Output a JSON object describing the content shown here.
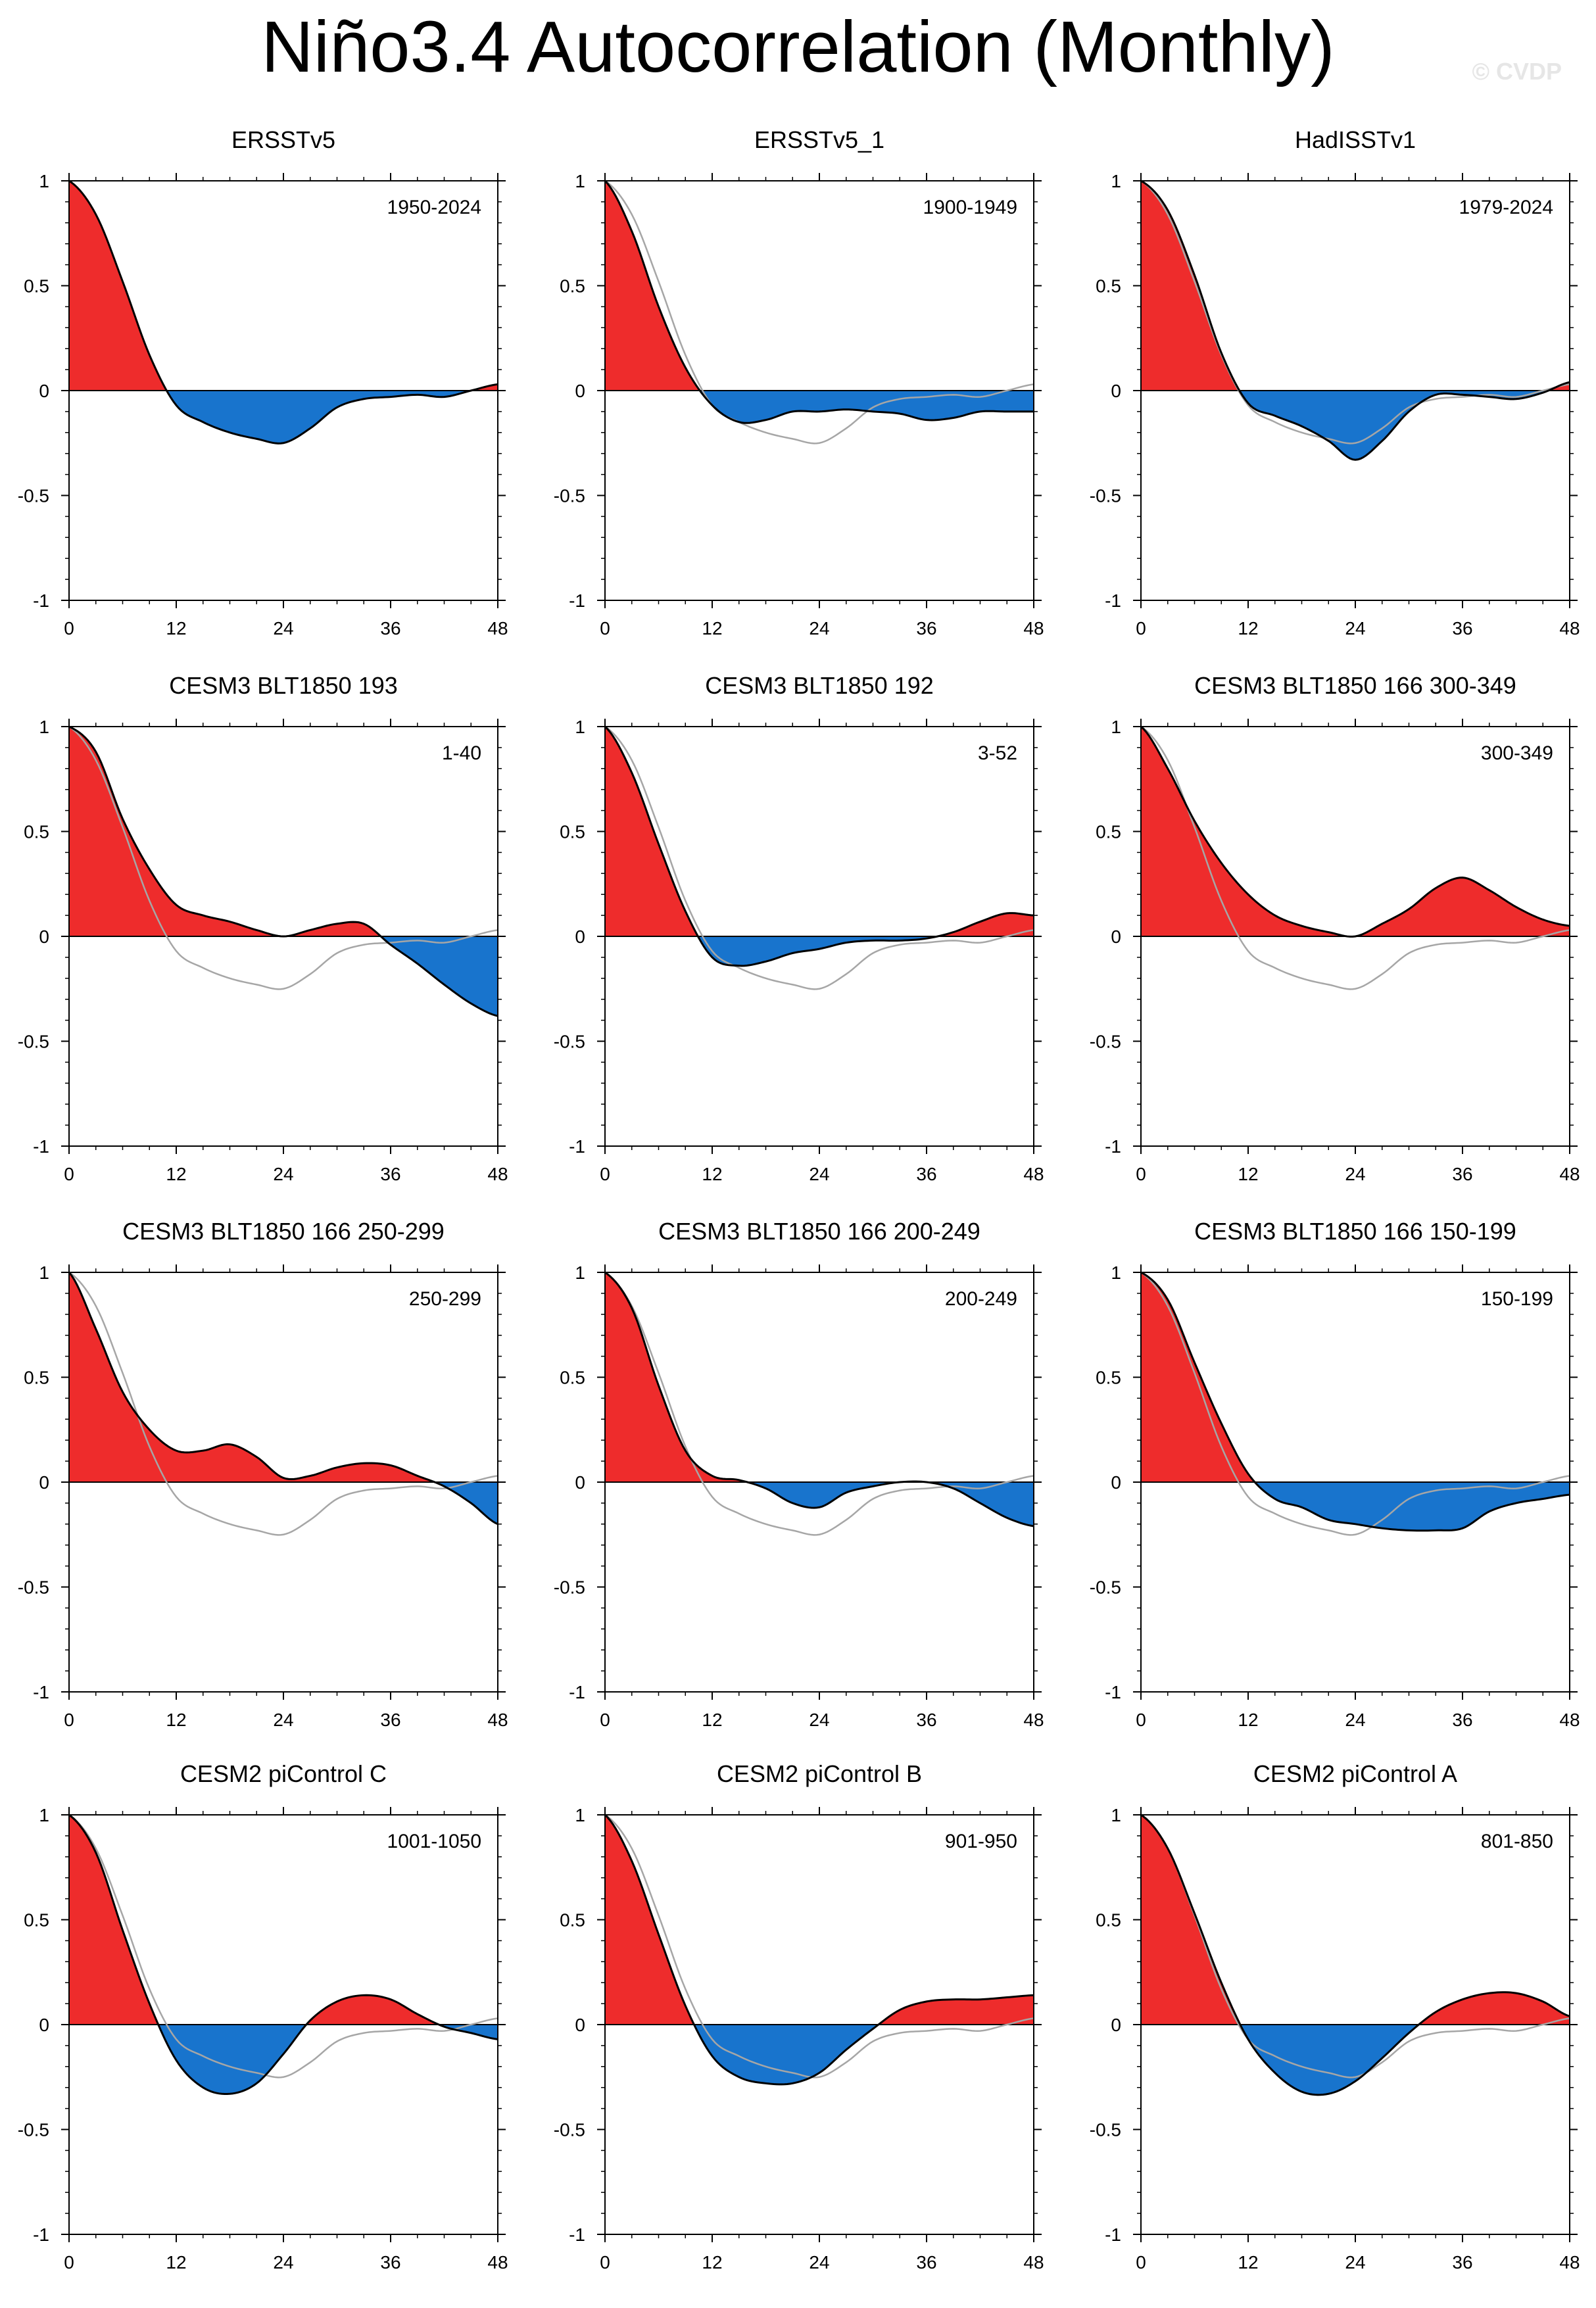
{
  "title": "Niño3.4 Autocorrelation (Monthly)",
  "watermark": "© CVDP",
  "colors": {
    "positive": "#ee2c2c",
    "negative": "#1874cd",
    "line": "#000000",
    "reference": "#a6a6a6",
    "axis": "#000000"
  },
  "chart_data": {
    "type": "area",
    "xlabel": "",
    "ylabel": "",
    "xlim": [
      0,
      48
    ],
    "ylim": [
      -1,
      1
    ],
    "x_ticks": [
      0,
      12,
      24,
      36,
      48
    ],
    "y_ticks": [
      1,
      0.5,
      0,
      -0.5,
      -1
    ],
    "y_tick_labels": [
      "1",
      "0.5",
      "0",
      "-0.5",
      "-1"
    ],
    "lags_months": [
      0,
      3,
      6,
      9,
      12,
      15,
      18,
      21,
      24,
      27,
      30,
      33,
      36,
      39,
      42,
      45,
      48
    ],
    "reference_series": "ERSSTv5",
    "panels": [
      {
        "title": "ERSSTv5",
        "period": "1950-2024",
        "values": [
          1,
          0.84,
          0.52,
          0.17,
          -0.07,
          -0.15,
          -0.2,
          -0.23,
          -0.25,
          -0.18,
          -0.08,
          -0.04,
          -0.03,
          -0.02,
          -0.03,
          0,
          0.03
        ]
      },
      {
        "title": "ERSSTv5_1",
        "period": "1900-1949",
        "values": [
          1,
          0.76,
          0.4,
          0.11,
          -0.07,
          -0.15,
          -0.14,
          -0.1,
          -0.1,
          -0.09,
          -0.1,
          -0.11,
          -0.14,
          -0.13,
          -0.1,
          -0.1,
          -0.1
        ]
      },
      {
        "title": "HadISSTv1",
        "period": "1979-2024",
        "values": [
          1,
          0.86,
          0.55,
          0.18,
          -0.06,
          -0.12,
          -0.17,
          -0.24,
          -0.33,
          -0.24,
          -0.1,
          -0.02,
          -0.02,
          -0.03,
          -0.04,
          -0.01,
          0.04
        ]
      },
      {
        "title": "CESM3 BLT1850 193",
        "period": "1-40",
        "values": [
          1,
          0.88,
          0.56,
          0.32,
          0.15,
          0.1,
          0.07,
          0.03,
          0,
          0.03,
          0.06,
          0.06,
          -0.04,
          -0.13,
          -0.23,
          -0.32,
          -0.38
        ]
      },
      {
        "title": "CESM3 BLT1850 192",
        "period": "3-52",
        "values": [
          1,
          0.78,
          0.44,
          0.12,
          -0.1,
          -0.14,
          -0.12,
          -0.08,
          -0.06,
          -0.03,
          -0.02,
          -0.02,
          -0.01,
          0.02,
          0.07,
          0.11,
          0.1
        ]
      },
      {
        "title": "CESM3 BLT1850 166 300-349",
        "period": "300-349",
        "values": [
          1,
          0.8,
          0.55,
          0.35,
          0.2,
          0.1,
          0.05,
          0.02,
          0,
          0.06,
          0.13,
          0.23,
          0.28,
          0.22,
          0.14,
          0.08,
          0.05
        ]
      },
      {
        "title": "CESM3 BLT1850 166 250-299",
        "period": "250-299",
        "values": [
          1,
          0.73,
          0.43,
          0.25,
          0.15,
          0.15,
          0.18,
          0.12,
          0.02,
          0.03,
          0.07,
          0.09,
          0.08,
          0.03,
          -0.02,
          -0.1,
          -0.2
        ]
      },
      {
        "title": "CESM3 BLT1850 166 200-249",
        "period": "200-249",
        "values": [
          1,
          0.83,
          0.46,
          0.15,
          0.03,
          0.01,
          -0.03,
          -0.1,
          -0.12,
          -0.05,
          -0.02,
          0,
          0,
          -0.03,
          -0.1,
          -0.17,
          -0.21
        ]
      },
      {
        "title": "CESM3 BLT1850 166 150-199",
        "period": "150-199",
        "values": [
          1,
          0.87,
          0.57,
          0.28,
          0.04,
          -0.08,
          -0.12,
          -0.18,
          -0.2,
          -0.22,
          -0.23,
          -0.23,
          -0.22,
          -0.14,
          -0.1,
          -0.08,
          -0.06
        ]
      },
      {
        "title": "CESM2 piControl C",
        "period": "1001-1050",
        "values": [
          1,
          0.82,
          0.45,
          0.1,
          -0.17,
          -0.3,
          -0.33,
          -0.28,
          -0.14,
          0.02,
          0.11,
          0.14,
          0.12,
          0.05,
          -0.01,
          -0.04,
          -0.07
        ]
      },
      {
        "title": "CESM2 piControl B",
        "period": "901-950",
        "values": [
          1,
          0.78,
          0.43,
          0.09,
          -0.15,
          -0.25,
          -0.28,
          -0.28,
          -0.23,
          -0.12,
          -0.02,
          0.07,
          0.11,
          0.12,
          0.12,
          0.13,
          0.14
        ]
      },
      {
        "title": "CESM2 piControl A",
        "period": "801-850",
        "values": [
          1,
          0.84,
          0.53,
          0.2,
          -0.07,
          -0.23,
          -0.32,
          -0.33,
          -0.27,
          -0.16,
          -0.04,
          0.06,
          0.12,
          0.15,
          0.15,
          0.11,
          0.04
        ]
      }
    ]
  }
}
